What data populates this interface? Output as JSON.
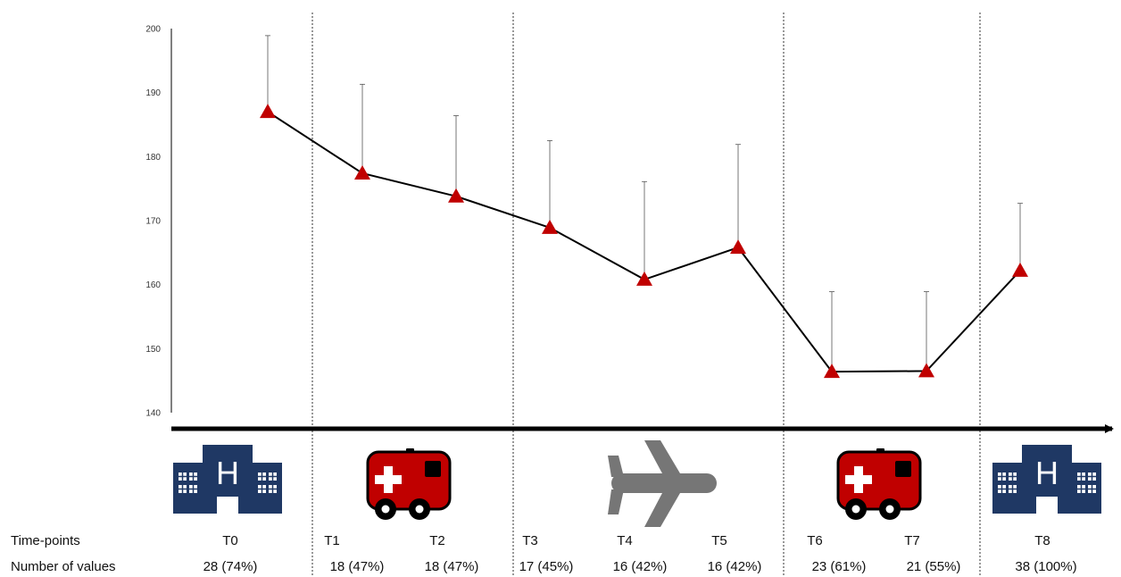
{
  "colors": {
    "marker": "#c00000",
    "line": "#000000",
    "hospital": "#1f3864",
    "ambulance": "#c00000",
    "plane": "#767676"
  },
  "chart_data": {
    "type": "line",
    "ylim": [
      140,
      200
    ],
    "yticks": [
      "140",
      "150",
      "160",
      "170",
      "180",
      "190",
      "200"
    ],
    "grid": false,
    "x": [
      "T0",
      "T1",
      "T2",
      "T3",
      "T4",
      "T5",
      "T6",
      "T7",
      "T8"
    ],
    "series": [
      {
        "values": [
          187,
          177.4,
          173.8,
          168.9,
          160.8,
          165.8,
          146.4,
          146.5,
          162.2
        ],
        "error_upper": [
          198.9,
          191.3,
          186.4,
          182.5,
          176.1,
          181.9,
          158.9,
          158.9,
          172.7
        ]
      }
    ],
    "phase_icons": [
      "hospital-icon",
      "ambulance-icon",
      "plane-icon",
      "ambulance-icon",
      "hospital-icon"
    ]
  },
  "table": {
    "row1_title": "Time-points",
    "row2_title": "Number of values",
    "timepoints": [
      "T0",
      "T1",
      "T2",
      "T3",
      "T4",
      "T5",
      "T6",
      "T7",
      "T8"
    ],
    "counts": [
      "28 (74%)",
      "18 (47%)",
      "18 (47%)",
      "17 (45%)",
      "16 (42%)",
      "16 (42%)",
      "23 (61%)",
      "21 (55%)",
      "38 (100%)"
    ]
  }
}
